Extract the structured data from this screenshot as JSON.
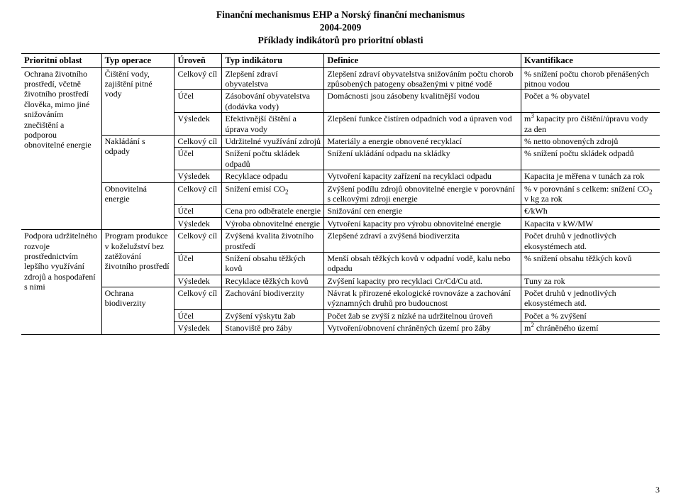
{
  "doc": {
    "title_line1": "Finanční mechanismus EHP a Norský finanční mechanismus",
    "title_line2": "2004-2009",
    "title_line3": "Příklady indikátorů pro prioritní oblasti",
    "page_number": "3"
  },
  "headers": {
    "col1": "Prioritní oblast",
    "col2": "Typ operace",
    "col3": "Úroveň",
    "col4": "Typ indikátoru",
    "col5": "Definice",
    "col6": "Kvantifikace"
  },
  "rows": [
    {
      "area": "Ochrana životního prostředí, včetně životního prostředí člověka, mimo jiné snižováním znečištění a podporou obnovitelné energie",
      "area_span": 9,
      "op": "Čištění vody, zajištění pitné vody",
      "op_span": 3,
      "level": "Celkový cíl",
      "indicator": "Zlepšení zdraví obyvatelstva",
      "definition": "Zlepšení zdraví obyvatelstva snižováním počtu chorob způsobených patogeny obsaženými v pitné vodě",
      "quant": "% snížení počtu chorob přenášených pitnou vodou",
      "area_top": true,
      "op_top": true,
      "rest_top": true
    },
    {
      "level": "Účel",
      "indicator": "Zásobování obyvatelstva (dodávka vody)",
      "definition": "Domácnosti jsou zásobeny kvalitnější vodou",
      "quant": "Počet a  % obyvatel",
      "rest_top": true
    },
    {
      "level": "Výsledek",
      "indicator": "Efektivnější čištění a úprava vody",
      "definition": "Zlepšení funkce čistíren odpadních vod a úpraven vod",
      "quant_html": "m<sup>3</sup> kapacity pro čištění/úpravu vody za den",
      "rest_top": true
    },
    {
      "op": "Nakládání s odpady",
      "op_span": 3,
      "level": "Celkový cíl",
      "indicator": "Udržitelné využívání zdrojů",
      "definition": "Materiály a energie obnovené recyklací",
      "quant": "% netto obnovených zdrojů",
      "op_top": true,
      "rest_top": true
    },
    {
      "level": "Účel",
      "indicator": "Snížení počtu skládek odpadů",
      "definition": "Snížení ukládání odpadu na skládky",
      "quant": "% snížení počtu skládek odpadů",
      "rest_top": true
    },
    {
      "level": "Výsledek",
      "indicator": "Recyklace odpadu",
      "definition": "Vytvoření kapacity zařízení na recyklaci odpadu",
      "quant": "Kapacita je měřena v tunách za rok",
      "rest_top": true
    },
    {
      "op": "Obnovitelná energie",
      "op_span": 3,
      "level": "Celkový cíl",
      "indicator_html": "Snížení emisí CO<sub>2</sub>",
      "definition": "Zvýšení podílu zdrojů obnovitelné energie v porovnání s celkovými zdroji energie",
      "quant_html": "% v porovnání s celkem: snížení CO<sub>2</sub> v kg za rok",
      "op_top": true,
      "rest_top": true
    },
    {
      "level": "Účel",
      "indicator": "Cena pro odběratele energie",
      "definition": "Snižování cen energie",
      "quant": "€/kWh",
      "rest_top": true
    },
    {
      "level": "Výsledek",
      "indicator": "Výroba obnovitelné energie",
      "definition": "Vytvoření kapacity pro výrobu obnovitelné energie",
      "quant": "Kapacita v kW/MW",
      "rest_top": true
    },
    {
      "area": "Podpora udržitelného rozvoje prostřednictvím lepšího využívání zdrojů a hospodaření s nimi",
      "area_span": 6,
      "op": "Program produkce v koželužství bez zatěžování životního prostředí",
      "op_span": 3,
      "level": "Celkový cíl",
      "indicator": "Zvýšená kvalita životního prostředí",
      "definition": "Zlepšené zdraví a zvýšená biodiverzita",
      "quant": "Počet druhů v jednotlivých ekosystémech atd.",
      "area_top": true,
      "op_top": true,
      "rest_top": true
    },
    {
      "level": "Účel",
      "indicator": "Snížení obsahu těžkých kovů",
      "definition": "Menší obsah těžkých kovů v odpadní vodě, kalu nebo odpadu",
      "quant": "% snížení obsahu těžkých kovů",
      "rest_top": true
    },
    {
      "level": "Výsledek",
      "indicator": "Recyklace těžkých kovů",
      "definition": "Zvýšení kapacity pro recyklaci Cr/Cd/Cu atd.",
      "quant": "Tuny za rok",
      "rest_top": true
    },
    {
      "op": "Ochrana biodiverzity",
      "op_span": 3,
      "level": "Celkový cíl",
      "indicator": "Zachování biodiverzity",
      "definition": "Návrat k přirozené ekologické rovnováze a zachování významných druhů pro budoucnost",
      "quant": "Počet druhů v jednotlivých ekosystémech atd.",
      "op_top": true,
      "rest_top": true
    },
    {
      "level": "Účel",
      "indicator": "Zvýšení výskytu žab",
      "definition": "Počet žab se zvýší z nízké na udržitelnou úroveň",
      "quant": "Počet a % zvýšení",
      "rest_top": true
    },
    {
      "level": "Výsledek",
      "indicator": "Stanoviště pro žáby",
      "definition": "Vytvoření/obnovení chráněných území pro žáby",
      "quant_html": "m<sup>2</sup> chráněného území",
      "rest_top": true,
      "last": true
    }
  ]
}
